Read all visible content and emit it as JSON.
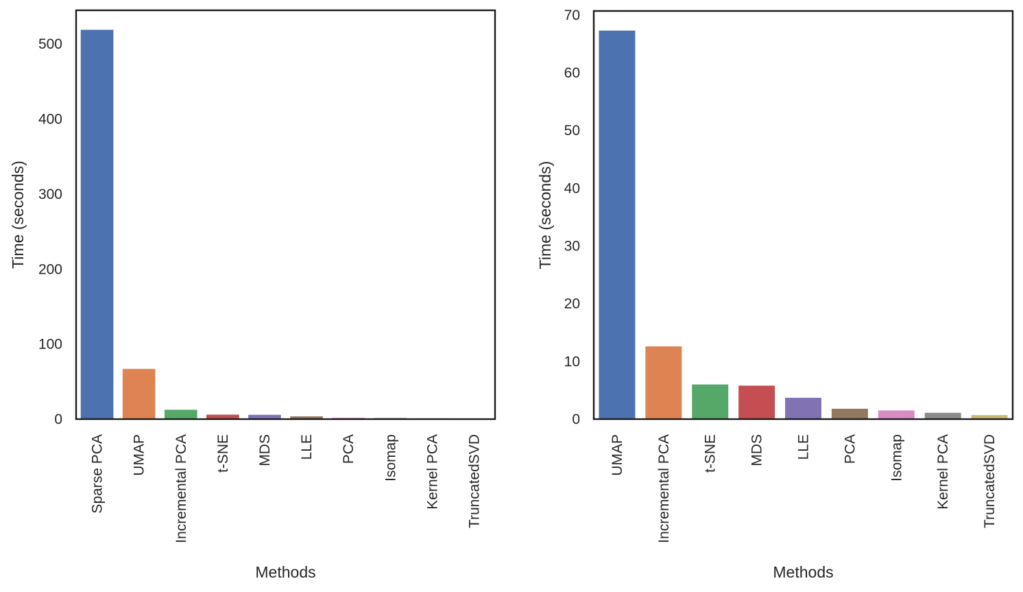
{
  "chart_data": [
    {
      "type": "bar",
      "categories": [
        "Sparse PCA",
        "UMAP",
        "Incremental PCA",
        "t-SNE",
        "MDS",
        "LLE",
        "PCA",
        "Isomap",
        "Kernel PCA",
        "TruncatedSVD"
      ],
      "values": [
        519,
        67,
        12.5,
        6,
        5.8,
        3.7,
        1.8,
        1.5,
        1.1,
        0.7
      ],
      "colors": [
        "#4c72b0",
        "#dd8452",
        "#55a868",
        "#c44e52",
        "#8172b3",
        "#937860",
        "#da8bc3",
        "#8c8c8c",
        "#ccb974",
        "#64b5cd"
      ],
      "ylim": [
        0,
        545
      ],
      "yticks": [
        0,
        100,
        200,
        300,
        400,
        500
      ],
      "xlabel": "Methods",
      "ylabel": "Time (seconds)"
    },
    {
      "type": "bar",
      "categories": [
        "UMAP",
        "Incremental PCA",
        "t-SNE",
        "MDS",
        "LLE",
        "PCA",
        "Isomap",
        "Kernel PCA",
        "TruncatedSVD"
      ],
      "values": [
        67.3,
        12.6,
        6.0,
        5.8,
        3.7,
        1.8,
        1.5,
        1.1,
        0.7
      ],
      "colors": [
        "#4c72b0",
        "#dd8452",
        "#55a868",
        "#c44e52",
        "#8172b3",
        "#937860",
        "#da8bc3",
        "#8c8c8c",
        "#ccb974"
      ],
      "ylim": [
        0,
        70.7
      ],
      "yticks": [
        0,
        10,
        20,
        30,
        40,
        50,
        60,
        70
      ],
      "xlabel": "Methods",
      "ylabel": "Time (seconds)"
    }
  ]
}
